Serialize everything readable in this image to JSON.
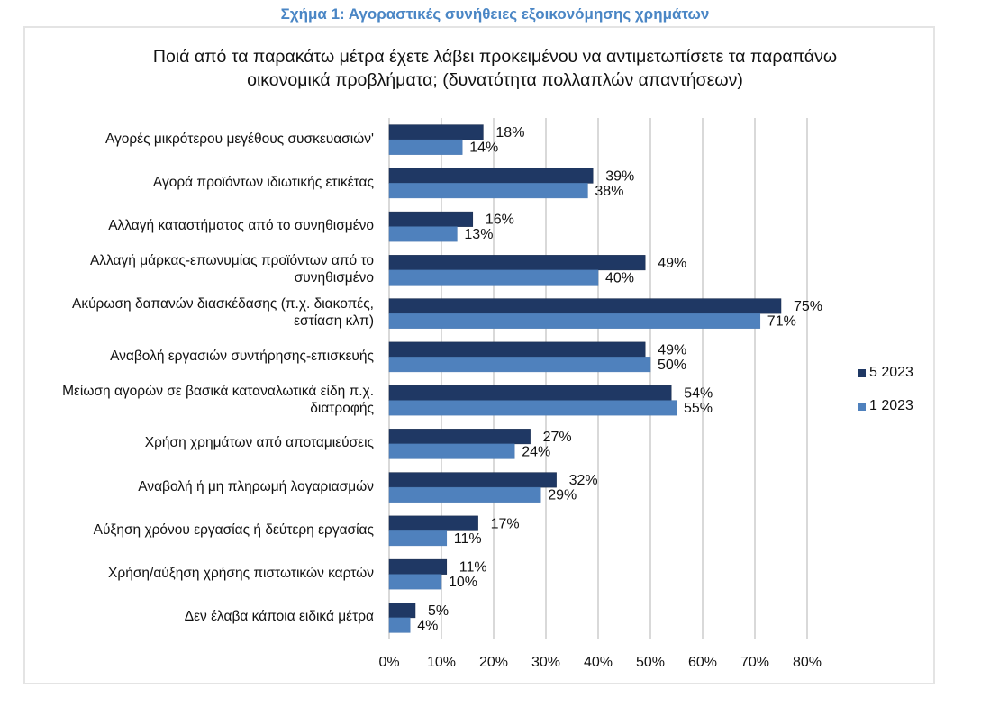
{
  "figure_title": "Σχήμα 1: Αγοραστικές συνήθειες εξοικονόμησης χρημάτων",
  "chart_data": {
    "type": "bar",
    "orientation": "horizontal",
    "title_lines": [
      "Ποιά από τα παρακάτω μέτρα έχετε λάβει προκειμένου να αντιμετωπίσετε τα παραπάνω",
      "οικονομικά προβλήματα; (δυνατότητα πολλαπλών απαντήσεων)"
    ],
    "categories": [
      [
        "Αγορές μικρότερου μεγέθους συσκευασιών'"
      ],
      [
        "Αγορά προϊόντων ιδιωτικής ετικέτας"
      ],
      [
        "Αλλαγή καταστήματος από το συνηθισμένο"
      ],
      [
        "Αλλαγή μάρκας-επωνυμίας προϊόντων από το",
        "συνηθισμένο"
      ],
      [
        "Ακύρωση δαπανών διασκέδασης (π.χ. διακοπές,",
        "εστίαση κλπ)"
      ],
      [
        "Αναβολή εργασιών συντήρησης-επισκευής"
      ],
      [
        "Μείωση αγορών σε βασικά καταναλωτικά είδη π.χ.",
        "διατροφής"
      ],
      [
        "Χρήση χρημάτων από αποταμιεύσεις"
      ],
      [
        "Αναβολή ή μη πληρωμή λογαριασμών"
      ],
      [
        "Αύξηση χρόνου εργασίας ή δεύτερη εργασίας"
      ],
      [
        "Χρήση/αύξηση χρήσης πιστωτικών καρτών"
      ],
      [
        "Δεν έλαβα κάποια ειδικά μέτρα"
      ]
    ],
    "series": [
      {
        "name": "5 2023",
        "color": "#1f3864",
        "values": [
          18,
          39,
          16,
          49,
          75,
          49,
          54,
          27,
          32,
          17,
          11,
          5
        ],
        "labels": [
          "18%",
          "39%",
          "16%",
          "49%",
          "75%",
          "49%",
          "54%",
          "27%",
          "32%",
          "17%",
          "11%",
          "5%"
        ]
      },
      {
        "name": "1 2023",
        "color": "#4f81bd",
        "values": [
          14,
          38,
          13,
          40,
          71,
          50,
          55,
          24,
          29,
          11,
          10,
          4
        ],
        "labels": [
          "14%",
          "38%",
          "13%",
          "40%",
          "71%",
          "50%",
          "55%",
          "24%",
          "29%",
          "11%",
          "10%",
          "4%"
        ]
      }
    ],
    "xlim": [
      0,
      80
    ],
    "xticks": [
      0,
      10,
      20,
      30,
      40,
      50,
      60,
      70,
      80
    ],
    "xtick_labels": [
      "0%",
      "10%",
      "20%",
      "30%",
      "40%",
      "50%",
      "60%",
      "70%",
      "80%"
    ],
    "grid": true,
    "legend_position": "right",
    "xlabel": "",
    "ylabel": ""
  }
}
